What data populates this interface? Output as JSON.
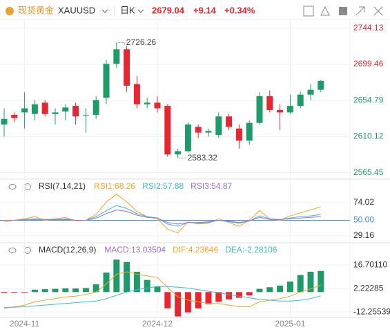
{
  "header": {
    "name": "现货黄金",
    "symbol": "XAUUSD",
    "period": "日K",
    "price": "2679.04",
    "change": "+9.14",
    "change_pct": "+0.34%"
  },
  "chart_data": [
    {
      "type": "candlestick",
      "categories": [
        null,
        null,
        "2024-11",
        null,
        null,
        null,
        null,
        null,
        null,
        null,
        null,
        null,
        null,
        null,
        null,
        "2024-12",
        null,
        null,
        null,
        null,
        null,
        null,
        null,
        null,
        null,
        null,
        null,
        null,
        "2025-01",
        null,
        null,
        null
      ],
      "open": [
        2625,
        2637,
        2640,
        2638,
        2652,
        2638,
        2641,
        2648,
        2636,
        2637,
        2658,
        2700,
        2718,
        2675,
        2650,
        2652,
        2648,
        2588,
        2592,
        2622,
        2615,
        2612,
        2635,
        2620,
        2605,
        2627,
        2660,
        2643,
        2640,
        2648,
        2662,
        2668
      ],
      "high": [
        2645,
        2640,
        2665,
        2655,
        2655,
        2645,
        2650,
        2652,
        2645,
        2660,
        2705,
        2726.26,
        2722,
        2685,
        2658,
        2660,
        2650,
        2595,
        2628,
        2625,
        2620,
        2640,
        2638,
        2625,
        2630,
        2665,
        2667,
        2650,
        2662,
        2666,
        2675,
        2680
      ],
      "low": [
        2610,
        2628,
        2620,
        2630,
        2635,
        2625,
        2630,
        2625,
        2615,
        2632,
        2650,
        2695,
        2665,
        2645,
        2645,
        2640,
        2585,
        2583.32,
        2590,
        2608,
        2610,
        2608,
        2618,
        2595,
        2600,
        2625,
        2640,
        2618,
        2638,
        2645,
        2655,
        2665
      ],
      "close": [
        2632,
        2633,
        2645,
        2650,
        2638,
        2640,
        2646,
        2635,
        2637,
        2655,
        2700,
        2718,
        2673,
        2650,
        2652,
        2645,
        2588,
        2592,
        2625,
        2615,
        2617,
        2635,
        2622,
        2605,
        2627,
        2660,
        2643,
        2640,
        2648,
        2662,
        2668,
        2679.04
      ],
      "up_color": "#1f9b6a",
      "down_color": "#e8262f",
      "ylim": [
        2560,
        2755
      ],
      "yticks": [
        2744.13,
        2699.46,
        2654.79,
        2610.12,
        2565.45
      ],
      "grid": true
    },
    {
      "type": "line",
      "title": "RSI(7,14,21)",
      "series": [
        {
          "name": "RSI1:68.26",
          "color": "#f5a623",
          "values": [
            48,
            50,
            52,
            55,
            50,
            52,
            54,
            49,
            50,
            58,
            75,
            85,
            75,
            62,
            55,
            52,
            38,
            33,
            48,
            45,
            46,
            52,
            47,
            42,
            50,
            63,
            52,
            50,
            56,
            60,
            64,
            68.26
          ]
        },
        {
          "name": "RSI2:57.88",
          "color": "#3cb8d8",
          "values": [
            50,
            50,
            51,
            52,
            51,
            51,
            52,
            50,
            50,
            55,
            63,
            70,
            66,
            59,
            55,
            53,
            45,
            42,
            47,
            46,
            47,
            50,
            48,
            46,
            49,
            56,
            52,
            51,
            53,
            55,
            56,
            57.88
          ]
        },
        {
          "name": "RSI3:54.87",
          "color": "#9b6fd0",
          "values": [
            50,
            50,
            51,
            51,
            51,
            51,
            51,
            50,
            50,
            53,
            59,
            64,
            62,
            57,
            54,
            53,
            47,
            45,
            47,
            47,
            48,
            50,
            49,
            47,
            49,
            54,
            51,
            51,
            52,
            53,
            54,
            54.87
          ]
        }
      ],
      "ylim": [
        20,
        100
      ],
      "yticks": [
        74.02,
        {
          "value": 50,
          "label": "50.00",
          "color": "#3d8fe0"
        },
        29.16
      ],
      "grid": true
    },
    {
      "type": "combo",
      "title": "MACD(12,26,9)",
      "series": [
        {
          "name": "MACD:13.03504",
          "color": "#9b6fd0",
          "kind": "bar",
          "values": [
            -0.6,
            -0.5,
            -0.3,
            1.5,
            1.8,
            2.0,
            2.3,
            2.2,
            2.5,
            4.8,
            12,
            20,
            18.5,
            12.5,
            7.5,
            3.5,
            -10,
            -15,
            -12.5,
            -10,
            -7.5,
            -6,
            -4.5,
            -3.5,
            -2,
            2,
            3,
            4,
            6.5,
            10.5,
            12.5,
            13.03504
          ]
        },
        {
          "name": "DIF:4.23646",
          "color": "#f5a623",
          "kind": "line",
          "values": [
            -10,
            -9,
            -8,
            -6,
            -5,
            -4,
            -3,
            -2.5,
            -1.5,
            0,
            5,
            11,
            12.5,
            11,
            10,
            9,
            3,
            -3,
            -5,
            -6,
            -7,
            -7,
            -8,
            -9,
            -9,
            -6,
            -5,
            -4,
            -2.5,
            0,
            2,
            4.23646
          ]
        },
        {
          "name": "DEA:-2.28106",
          "color": "#3cb8d8",
          "kind": "line",
          "values": [
            -9.5,
            -9.3,
            -9,
            -8.5,
            -8,
            -7.5,
            -7,
            -6.5,
            -6,
            -5.5,
            -4,
            -2,
            0,
            1.5,
            2.5,
            3.5,
            3.5,
            3,
            2.5,
            1.5,
            0.5,
            -0.5,
            -1.5,
            -2.5,
            -3.5,
            -4.5,
            -5,
            -5.5,
            -5.5,
            -5,
            -4,
            -2.28106
          ]
        }
      ],
      "up_color": "#1f9b6a",
      "down_color": "#e8262f",
      "ylim": [
        -15.2,
        29.1
      ],
      "yticks": [
        {
          "value": 16.7011,
          "label": "16.70110"
        },
        2.22285,
        -12.25539
      ],
      "grid": true
    }
  ]
}
